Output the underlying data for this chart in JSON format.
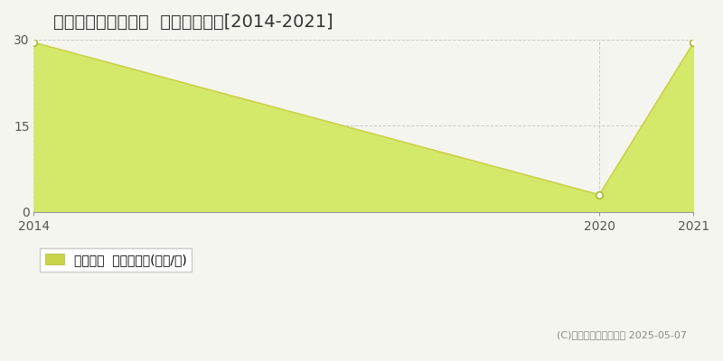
{
  "title": "いちき串木野市袏田  住宅価格推移[2014-2021]",
  "x_values": [
    2014,
    2020,
    2021
  ],
  "y_values": [
    29.5,
    3.0,
    29.5
  ],
  "xlim": [
    2014,
    2021
  ],
  "ylim": [
    0,
    30
  ],
  "yticks": [
    0,
    15,
    30
  ],
  "xticks": [
    2014,
    2020,
    2021
  ],
  "line_color": "#c8d44a",
  "fill_color": "#d4e86a",
  "fill_alpha": 1.0,
  "marker_color": "white",
  "marker_edge_color": "#aabb33",
  "grid_color": "#cccccc",
  "background_color": "#f5f5f0",
  "legend_label": "住宅価格  平均坤単価(万円/坤)",
  "copyright_text": "(C)土地価格ドットコム 2025-05-07",
  "title_fontsize": 14,
  "axis_fontsize": 10,
  "legend_fontsize": 10,
  "legend_square_color": "#c8d44a"
}
